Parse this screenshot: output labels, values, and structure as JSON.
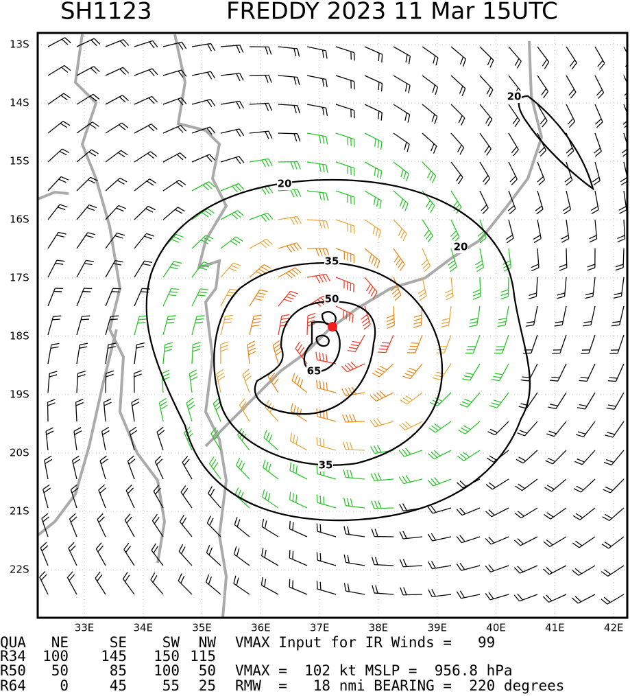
{
  "header": {
    "storm_id": "SH1123",
    "title": "FREDDY 2023 11 Mar 15UTC"
  },
  "map": {
    "lat_labels": [
      "13S",
      "14S",
      "15S",
      "16S",
      "17S",
      "18S",
      "19S",
      "20S",
      "21S",
      "22S"
    ],
    "lon_labels": [
      "33E",
      "34E",
      "35E",
      "36E",
      "37E",
      "38E",
      "39E",
      "40E",
      "41E",
      "42E"
    ],
    "contour_labels": [
      "20",
      "20",
      "20",
      "35",
      "35",
      "50",
      "65"
    ]
  },
  "table": {
    "header": [
      "QUA",
      "NE",
      "SE",
      "SW",
      "NW"
    ],
    "rows": [
      [
        "R34",
        "100",
        "145",
        "150",
        "115"
      ],
      [
        "R50",
        "50",
        "85",
        "100",
        "50"
      ],
      [
        "R64",
        "0",
        "45",
        "55",
        "25"
      ]
    ]
  },
  "info": [
    "VMAX Input for IR Winds =   99",
    "VMAX =  102 kt MSLP =  956.8 hPa",
    "RMW  =   18 nmi BEARING =  220 degrees"
  ]
}
